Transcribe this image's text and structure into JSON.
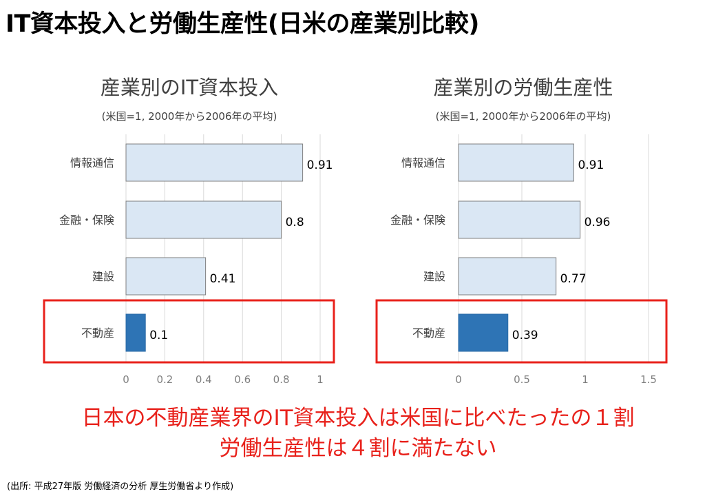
{
  "page": {
    "title": "IT資本投入と労働生産性(日米の産業別比較)",
    "message_line1": "日本の不動産業界のIT資本投入は米国に比べたったの１割",
    "message_line2": "労働生産性は４割に満たない",
    "source": "(出所: 平成27年版 労働経済の分析 厚生労働省より作成)",
    "colors": {
      "bar_normal": "#dae7f4",
      "bar_highlight": "#2e74b5",
      "highlight_box": "#e8211b",
      "message": "#e8211b"
    }
  },
  "chart_data": [
    {
      "type": "bar",
      "orientation": "horizontal",
      "title": "産業別のIT資本投入",
      "subtitle": "(米国=1, 2000年から2006年の平均)",
      "categories": [
        "情報通信",
        "金融・保険",
        "建設",
        "不動産"
      ],
      "values": [
        0.91,
        0.8,
        0.41,
        0.1
      ],
      "value_labels": [
        "0.91",
        "0.8",
        "0.41",
        "0.1"
      ],
      "xlim": [
        0,
        1
      ],
      "ticks": [
        "0",
        "0.2",
        "0.4",
        "0.6",
        "0.8",
        "1"
      ],
      "tick_values": [
        0,
        0.2,
        0.4,
        0.6,
        0.8,
        1
      ],
      "grid": true,
      "highlighted_category": "不動産"
    },
    {
      "type": "bar",
      "orientation": "horizontal",
      "title": "産業別の労働生産性",
      "subtitle": "(米国=1, 2000年から2006年の平均)",
      "categories": [
        "情報通信",
        "金融・保険",
        "建設",
        "不動産"
      ],
      "values": [
        0.91,
        0.96,
        0.77,
        0.39
      ],
      "value_labels": [
        "0.91",
        "0.96",
        "0.77",
        "0.39"
      ],
      "xlim": [
        0,
        1.5
      ],
      "ticks": [
        "0",
        "0.5",
        "1",
        "1.5"
      ],
      "tick_values": [
        0,
        0.5,
        1,
        1.5
      ],
      "grid": true,
      "highlighted_category": "不動産"
    }
  ]
}
